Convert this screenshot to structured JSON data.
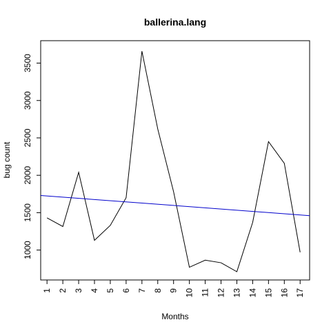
{
  "chart_data": {
    "type": "line",
    "title": "ballerina.lang",
    "xlabel": "Months",
    "ylabel": "bug count",
    "x": [
      1,
      2,
      3,
      4,
      5,
      6,
      7,
      8,
      9,
      10,
      11,
      12,
      13,
      14,
      15,
      16,
      17
    ],
    "x_tick_labels": [
      "1",
      "2",
      "3",
      "4",
      "5",
      "6",
      "7",
      "8",
      "9",
      "10",
      "11",
      "12",
      "13",
      "14",
      "15",
      "16",
      "17"
    ],
    "y_ticks": [
      1000,
      1500,
      2000,
      2500,
      3000,
      3500
    ],
    "y_tick_labels": [
      "1000",
      "1500",
      "2000",
      "2500",
      "3000",
      "3500"
    ],
    "xlim": [
      0.6,
      17.6
    ],
    "ylim": [
      600,
      3800
    ],
    "series": [
      {
        "values": [
          1430,
          1315,
          2040,
          1130,
          1330,
          1700,
          3660,
          2620,
          1780,
          770,
          865,
          830,
          710,
          1370,
          2450,
          2160,
          970
        ],
        "color": "#000000"
      }
    ],
    "trend_line": {
      "x": [
        0.6,
        17.6
      ],
      "values": [
        1730,
        1460
      ],
      "color": "#0000cc"
    },
    "grid": false,
    "legend": "none"
  }
}
